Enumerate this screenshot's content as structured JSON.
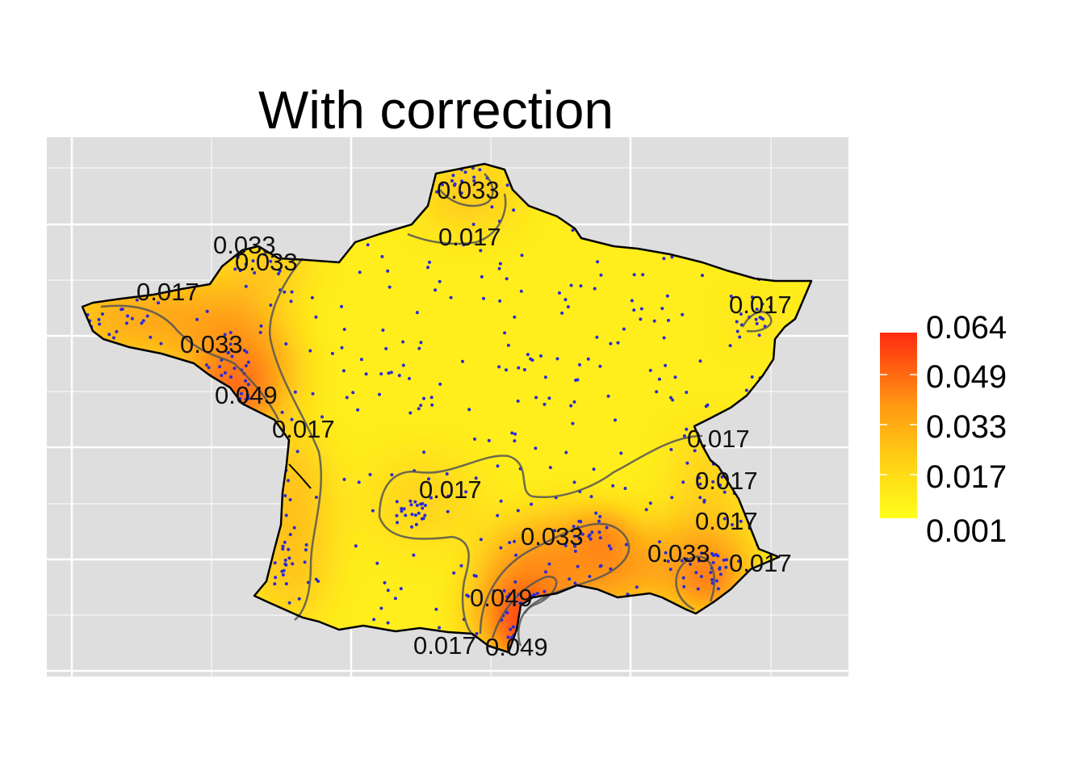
{
  "title": "With correction",
  "colors": {
    "panel_background": "#dedede",
    "grid": "#ffffff",
    "low": "#ffff1a",
    "high": "#ff2a10",
    "points": "#2a2ad8",
    "contour": "#555555",
    "border": "#000000"
  },
  "legend": {
    "labels": [
      "0.064",
      "0.049",
      "0.033",
      "0.017",
      "0.001"
    ]
  },
  "contour_labels": [
    "0.033",
    "0.017",
    "0.033",
    "0.033",
    "0.017",
    "0.033",
    "0.049",
    "0.017",
    "0.017",
    "0.017",
    "0.017",
    "0.017",
    "0.017",
    "0.033",
    "0.033",
    "0.017",
    "0.049",
    "0.017",
    "0.049"
  ],
  "chart_data": {
    "type": "heatmap",
    "title": "With correction",
    "xlabel": "",
    "ylabel": "",
    "value_range": [
      0.001,
      0.064
    ],
    "legend_breaks": [
      0.001,
      0.017,
      0.033,
      0.049,
      0.064
    ],
    "contour_levels": [
      0.017,
      0.033,
      0.049
    ],
    "legend_position": "right",
    "grid": true
  }
}
